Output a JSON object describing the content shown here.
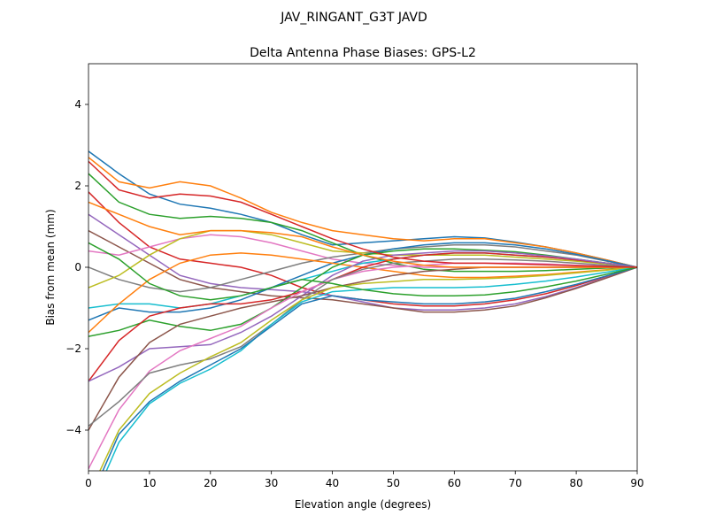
{
  "chart_data": {
    "type": "line",
    "suptitle": "JAV_RINGANT_G3T JAVD",
    "title": "Delta Antenna Phase Biases: GPS-L2",
    "xlabel": "Elevation angle (degrees)",
    "ylabel": "Bias from mean (mm)",
    "xlim": [
      0,
      90
    ],
    "ylim": [
      -5,
      5
    ],
    "xticks": [
      0,
      10,
      20,
      30,
      40,
      50,
      60,
      70,
      80,
      90
    ],
    "yticks": [
      -4,
      -2,
      0,
      2,
      4
    ],
    "grid": false,
    "colors": [
      "#1f77b4",
      "#ff7f0e",
      "#2ca02c",
      "#d62728",
      "#9467bd",
      "#8c564b",
      "#e377c2",
      "#7f7f7f",
      "#bcbd22",
      "#17becf"
    ],
    "x": [
      0,
      5,
      10,
      15,
      20,
      25,
      30,
      35,
      40,
      45,
      50,
      55,
      60,
      65,
      70,
      75,
      80,
      85,
      90
    ],
    "series": [
      [
        2.85,
        2.3,
        1.8,
        1.55,
        1.45,
        1.3,
        1.1,
        0.8,
        0.55,
        0.6,
        0.65,
        0.7,
        0.75,
        0.72,
        0.62,
        0.5,
        0.35,
        0.18,
        0
      ],
      [
        2.7,
        2.1,
        1.95,
        2.1,
        2.0,
        1.7,
        1.35,
        1.1,
        0.9,
        0.8,
        0.7,
        0.65,
        0.7,
        0.7,
        0.6,
        0.5,
        0.35,
        0.18,
        0
      ],
      [
        2.3,
        1.6,
        1.3,
        1.2,
        1.25,
        1.2,
        1.1,
        0.9,
        0.6,
        0.3,
        0.1,
        -0.05,
        -0.1,
        -0.1,
        -0.1,
        -0.08,
        -0.05,
        -0.02,
        0
      ],
      [
        1.85,
        1.1,
        0.5,
        0.2,
        0.1,
        0.0,
        -0.2,
        -0.5,
        -0.7,
        -0.8,
        -0.9,
        -0.95,
        -0.95,
        -0.9,
        -0.8,
        -0.65,
        -0.45,
        -0.22,
        0
      ],
      [
        1.3,
        0.8,
        0.3,
        -0.2,
        -0.4,
        -0.5,
        -0.55,
        -0.6,
        -0.7,
        -0.85,
        -1.0,
        -1.05,
        -1.05,
        -1.0,
        -0.9,
        -0.72,
        -0.5,
        -0.25,
        0
      ],
      [
        0.9,
        0.5,
        0.1,
        -0.3,
        -0.5,
        -0.6,
        -0.7,
        -0.75,
        -0.8,
        -0.9,
        -1.0,
        -1.1,
        -1.1,
        -1.05,
        -0.95,
        -0.75,
        -0.52,
        -0.26,
        0
      ],
      [
        0.4,
        0.3,
        0.5,
        0.7,
        0.8,
        0.75,
        0.6,
        0.4,
        0.2,
        0.1,
        0.05,
        0.0,
        0.0,
        0.0,
        0.0,
        0.0,
        0.0,
        0.0,
        0
      ],
      [
        0.0,
        -0.3,
        -0.5,
        -0.6,
        -0.5,
        -0.3,
        -0.1,
        0.1,
        0.25,
        0.35,
        0.45,
        0.5,
        0.55,
        0.55,
        0.5,
        0.4,
        0.3,
        0.15,
        0
      ],
      [
        -0.5,
        -0.2,
        0.3,
        0.7,
        0.9,
        0.9,
        0.8,
        0.6,
        0.4,
        0.35,
        0.3,
        0.3,
        0.3,
        0.3,
        0.25,
        0.2,
        0.15,
        0.08,
        0
      ],
      [
        -1.0,
        -0.9,
        -0.9,
        -1.0,
        -0.9,
        -0.7,
        -0.5,
        -0.3,
        -0.1,
        0.1,
        0.2,
        0.3,
        0.35,
        0.35,
        0.3,
        0.25,
        0.18,
        0.1,
        0
      ],
      [
        -1.3,
        -1.0,
        -1.1,
        -1.1,
        -1.0,
        -0.8,
        -0.5,
        -0.2,
        0.1,
        0.3,
        0.45,
        0.55,
        0.6,
        0.6,
        0.55,
        0.45,
        0.32,
        0.16,
        0
      ],
      [
        -1.6,
        -0.9,
        -0.3,
        0.1,
        0.3,
        0.35,
        0.3,
        0.2,
        0.1,
        0.0,
        -0.1,
        -0.2,
        -0.25,
        -0.25,
        -0.22,
        -0.18,
        -0.12,
        -0.06,
        0
      ],
      [
        -1.7,
        -1.55,
        -1.3,
        -1.45,
        -1.55,
        -1.4,
        -1.0,
        -0.5,
        0.0,
        0.3,
        0.4,
        0.45,
        0.45,
        0.42,
        0.38,
        0.3,
        0.2,
        0.1,
        0
      ],
      [
        -2.8,
        -1.8,
        -1.2,
        -1.0,
        -0.9,
        -0.9,
        -0.8,
        -0.6,
        -0.3,
        0.0,
        0.2,
        0.3,
        0.35,
        0.35,
        0.3,
        0.25,
        0.18,
        0.1,
        0
      ],
      [
        -2.8,
        -2.45,
        -2.0,
        -1.95,
        -1.9,
        -1.6,
        -1.2,
        -0.7,
        -0.2,
        0.15,
        0.3,
        0.35,
        0.4,
        0.4,
        0.35,
        0.28,
        0.2,
        0.1,
        0
      ],
      [
        -4.0,
        -2.7,
        -1.85,
        -1.4,
        -1.2,
        -1.0,
        -0.85,
        -0.7,
        -0.5,
        -0.35,
        -0.2,
        -0.1,
        -0.05,
        0.0,
        0.0,
        0.0,
        0.0,
        0.0,
        0
      ],
      [
        -4.95,
        -3.5,
        -2.55,
        -2.05,
        -1.75,
        -1.45,
        -1.0,
        -0.6,
        -0.3,
        -0.1,
        0.0,
        0.05,
        0.1,
        0.1,
        0.1,
        0.08,
        0.05,
        0.03,
        0
      ],
      [
        -3.9,
        -3.3,
        -2.6,
        -2.4,
        -2.25,
        -1.95,
        -1.4,
        -0.8,
        -0.3,
        -0.05,
        0.1,
        0.15,
        0.2,
        0.2,
        0.18,
        0.15,
        0.1,
        0.05,
        0
      ],
      [
        -5.6,
        -4.0,
        -3.1,
        -2.6,
        -2.2,
        -1.85,
        -1.3,
        -0.8,
        -0.5,
        -0.4,
        -0.35,
        -0.3,
        -0.3,
        -0.28,
        -0.25,
        -0.2,
        -0.14,
        -0.07,
        0
      ],
      [
        -6.0,
        -4.3,
        -3.35,
        -2.85,
        -2.5,
        -2.05,
        -1.4,
        -0.85,
        -0.6,
        -0.55,
        -0.5,
        -0.5,
        -0.5,
        -0.48,
        -0.42,
        -0.34,
        -0.24,
        -0.12,
        0
      ],
      [
        -5.8,
        -4.1,
        -3.3,
        -2.8,
        -2.4,
        -2.0,
        -1.45,
        -0.9,
        -0.7,
        -0.8,
        -0.85,
        -0.9,
        -0.9,
        -0.85,
        -0.76,
        -0.6,
        -0.42,
        -0.21,
        0
      ],
      [
        1.6,
        1.3,
        1.0,
        0.8,
        0.9,
        0.9,
        0.85,
        0.75,
        0.5,
        0.3,
        0.15,
        0.05,
        0.0,
        0.0,
        0.0,
        0.0,
        0.0,
        0.0,
        0
      ],
      [
        0.6,
        0.2,
        -0.4,
        -0.7,
        -0.8,
        -0.7,
        -0.5,
        -0.3,
        -0.4,
        -0.55,
        -0.65,
        -0.7,
        -0.7,
        -0.68,
        -0.6,
        -0.48,
        -0.34,
        -0.17,
        0
      ],
      [
        2.6,
        1.9,
        1.7,
        1.8,
        1.75,
        1.6,
        1.3,
        1.0,
        0.7,
        0.45,
        0.25,
        0.15,
        0.1,
        0.1,
        0.08,
        0.06,
        0.04,
        0.02,
        0
      ]
    ]
  }
}
